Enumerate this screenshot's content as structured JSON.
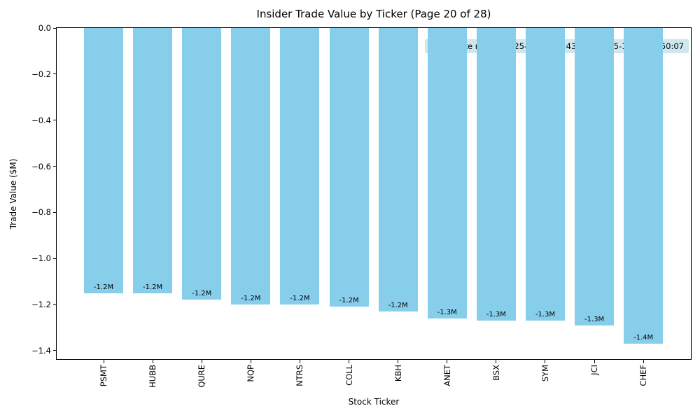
{
  "chart_data": {
    "type": "bar",
    "title": "Insider Trade Value by Ticker (Page 20 of 28)",
    "xlabel": "Stock Ticker",
    "ylabel": "Trade Value ($M)",
    "categories": [
      "PSMT",
      "HUBB",
      "QURE",
      "NQP",
      "NTRS",
      "COLL",
      "KBH",
      "ANET",
      "BSX",
      "SYM",
      "JCI",
      "CHEF"
    ],
    "values": [
      -1.15,
      -1.15,
      -1.18,
      -1.2,
      -1.2,
      -1.21,
      -1.23,
      -1.26,
      -1.27,
      -1.27,
      -1.29,
      -1.37
    ],
    "bar_labels": [
      "-1.2M",
      "-1.2M",
      "-1.2M",
      "-1.2M",
      "-1.2M",
      "-1.2M",
      "-1.2M",
      "-1.3M",
      "-1.3M",
      "-1.3M",
      "-1.3M",
      "-1.4M"
    ],
    "annotation": "Trade date range: 2025-11-05 16:43:29 – 2025-11-07 21:50:07",
    "y_tick_labels": [
      "0.0",
      "−0.2",
      "−0.4",
      "−0.6",
      "−0.8",
      "−1.0",
      "−1.2",
      "−1.4"
    ],
    "y_tick_values": [
      0,
      -0.2,
      -0.4,
      -0.6,
      -0.8,
      -1.0,
      -1.2,
      -1.4
    ],
    "ylim": [
      -1.443,
      0
    ],
    "bar_color": "#87CEEB",
    "annotation_bg": "#ADD8E6",
    "grid": false,
    "legend_position": "none"
  }
}
